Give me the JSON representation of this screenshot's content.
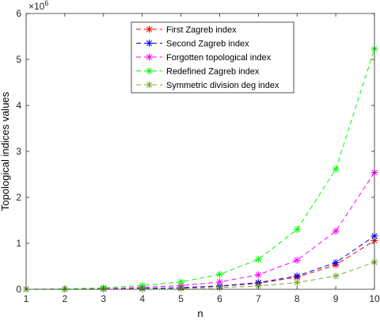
{
  "chart_data": {
    "type": "line",
    "title": "",
    "xlabel": "n",
    "ylabel": "Topological indices values",
    "y_exponent_label": "×10",
    "y_exponent_power": "6",
    "xlim": [
      1,
      10
    ],
    "ylim": [
      0,
      6000000
    ],
    "x": [
      1,
      2,
      3,
      4,
      5,
      6,
      7,
      8,
      9,
      10
    ],
    "x_ticks": [
      "1",
      "2",
      "3",
      "4",
      "5",
      "6",
      "7",
      "8",
      "9",
      "10"
    ],
    "y_ticks": [
      0,
      1000000,
      2000000,
      3000000,
      4000000,
      5000000,
      6000000
    ],
    "y_tick_labels": [
      "0",
      "1",
      "2",
      "3",
      "4",
      "5",
      "6"
    ],
    "grid": false,
    "legend_position": "top-right",
    "series": [
      {
        "name": "First Zagreb index",
        "color": "#ff0000",
        "values": [
          0,
          2000,
          8000,
          16000,
          32000,
          66000,
          130000,
          265000,
          530000,
          1060000
        ]
      },
      {
        "name": "Second Zagreb index",
        "color": "#0000ff",
        "values": [
          0,
          2000,
          8000,
          18000,
          36000,
          72000,
          144000,
          290000,
          580000,
          1160000
        ]
      },
      {
        "name": "Forgotten topological index",
        "color": "#ff00ff",
        "values": [
          0,
          4000,
          16000,
          40000,
          80000,
          158000,
          316000,
          632000,
          1265000,
          2540000
        ]
      },
      {
        "name": "Redefined Zagreb index",
        "color": "#00ff00",
        "values": [
          0,
          8000,
          32000,
          80000,
          160000,
          325000,
          650000,
          1300000,
          2610000,
          5230000
        ]
      },
      {
        "name": "Symmetric division deg index",
        "color": "#77ac30",
        "values": [
          0,
          1000,
          4000,
          9000,
          18000,
          36000,
          72000,
          145000,
          290000,
          590000
        ]
      }
    ]
  }
}
